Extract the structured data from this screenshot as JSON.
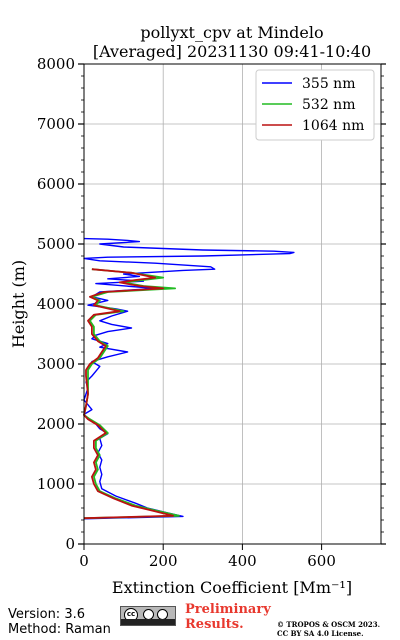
{
  "chart_data": {
    "type": "line",
    "title_line1": "pollyxt_cpv at Mindelo",
    "title_line2": "[Averaged] 20231130 09:41-10:40",
    "xlabel": "Extinction Coefficient [Mm⁻¹]",
    "ylabel": "Height (m)",
    "xlim": [
      0,
      750
    ],
    "ylim": [
      0,
      8000
    ],
    "xticks": [
      0,
      200,
      400,
      600
    ],
    "yticks": [
      0,
      1000,
      2000,
      3000,
      4000,
      5000,
      6000,
      7000,
      8000
    ],
    "grid": true,
    "legend_position": "top-right",
    "series": [
      {
        "name": "355 nm",
        "color": "#0000ff",
        "points": [
          [
            0,
            5090
          ],
          [
            60,
            5080
          ],
          [
            110,
            5060
          ],
          [
            140,
            5040
          ],
          [
            40,
            5000
          ],
          [
            100,
            4950
          ],
          [
            300,
            4900
          ],
          [
            480,
            4880
          ],
          [
            530,
            4860
          ],
          [
            520,
            4840
          ],
          [
            300,
            4800
          ],
          [
            60,
            4780
          ],
          [
            0,
            4760
          ],
          [
            40,
            4720
          ],
          [
            180,
            4680
          ],
          [
            320,
            4620
          ],
          [
            330,
            4580
          ],
          [
            250,
            4560
          ],
          [
            100,
            4500
          ],
          [
            140,
            4460
          ],
          [
            60,
            4420
          ],
          [
            150,
            4380
          ],
          [
            30,
            4340
          ],
          [
            180,
            4260
          ],
          [
            40,
            4200
          ],
          [
            20,
            4120
          ],
          [
            60,
            4060
          ],
          [
            10,
            3980
          ],
          [
            80,
            3920
          ],
          [
            110,
            3880
          ],
          [
            70,
            3800
          ],
          [
            40,
            3720
          ],
          [
            70,
            3660
          ],
          [
            120,
            3600
          ],
          [
            60,
            3540
          ],
          [
            30,
            3480
          ],
          [
            20,
            3420
          ],
          [
            60,
            3340
          ],
          [
            40,
            3280
          ],
          [
            110,
            3200
          ],
          [
            60,
            3120
          ],
          [
            20,
            3040
          ],
          [
            40,
            2960
          ],
          [
            30,
            2880
          ],
          [
            20,
            2800
          ],
          [
            5,
            2700
          ],
          [
            10,
            2600
          ],
          [
            5,
            2500
          ],
          [
            0,
            2400
          ],
          [
            10,
            2320
          ],
          [
            20,
            2240
          ],
          [
            0,
            2160
          ],
          [
            10,
            2080
          ],
          [
            30,
            2000
          ],
          [
            40,
            1920
          ],
          [
            60,
            1840
          ],
          [
            40,
            1760
          ],
          [
            45,
            1640
          ],
          [
            35,
            1520
          ],
          [
            45,
            1400
          ],
          [
            40,
            1280
          ],
          [
            45,
            1160
          ],
          [
            40,
            1040
          ],
          [
            45,
            920
          ],
          [
            80,
            800
          ],
          [
            130,
            680
          ],
          [
            160,
            600
          ],
          [
            210,
            520
          ],
          [
            250,
            460
          ],
          [
            0,
            420
          ]
        ]
      },
      {
        "name": "532 nm",
        "color": "#22bb22",
        "points": [
          [
            20,
            4580
          ],
          [
            120,
            4520
          ],
          [
            200,
            4440
          ],
          [
            150,
            4400
          ],
          [
            100,
            4360
          ],
          [
            150,
            4300
          ],
          [
            230,
            4260
          ],
          [
            60,
            4200
          ],
          [
            20,
            4120
          ],
          [
            40,
            4060
          ],
          [
            30,
            3980
          ],
          [
            100,
            3880
          ],
          [
            30,
            3820
          ],
          [
            15,
            3720
          ],
          [
            25,
            3620
          ],
          [
            25,
            3500
          ],
          [
            40,
            3380
          ],
          [
            60,
            3300
          ],
          [
            50,
            3200
          ],
          [
            40,
            3100
          ],
          [
            20,
            3000
          ],
          [
            10,
            2900
          ],
          [
            10,
            2800
          ],
          [
            10,
            2500
          ],
          [
            5,
            2300
          ],
          [
            0,
            2150
          ],
          [
            15,
            2080
          ],
          [
            40,
            1980
          ],
          [
            60,
            1850
          ],
          [
            30,
            1720
          ],
          [
            30,
            1600
          ],
          [
            40,
            1480
          ],
          [
            30,
            1360
          ],
          [
            35,
            1240
          ],
          [
            25,
            1120
          ],
          [
            30,
            1000
          ],
          [
            40,
            880
          ],
          [
            80,
            760
          ],
          [
            130,
            640
          ],
          [
            180,
            560
          ],
          [
            240,
            470
          ],
          [
            0,
            430
          ]
        ]
      },
      {
        "name": "1064 nm",
        "color": "#bb1111",
        "points": [
          [
            20,
            4580
          ],
          [
            120,
            4520
          ],
          [
            180,
            4440
          ],
          [
            130,
            4400
          ],
          [
            90,
            4360
          ],
          [
            140,
            4300
          ],
          [
            200,
            4260
          ],
          [
            50,
            4200
          ],
          [
            15,
            4120
          ],
          [
            35,
            4060
          ],
          [
            25,
            3980
          ],
          [
            90,
            3880
          ],
          [
            25,
            3820
          ],
          [
            10,
            3720
          ],
          [
            20,
            3620
          ],
          [
            20,
            3500
          ],
          [
            35,
            3380
          ],
          [
            55,
            3300
          ],
          [
            45,
            3200
          ],
          [
            35,
            3100
          ],
          [
            15,
            3000
          ],
          [
            5,
            2900
          ],
          [
            5,
            2800
          ],
          [
            10,
            2500
          ],
          [
            5,
            2300
          ],
          [
            0,
            2150
          ],
          [
            10,
            2080
          ],
          [
            35,
            1980
          ],
          [
            55,
            1850
          ],
          [
            25,
            1720
          ],
          [
            25,
            1600
          ],
          [
            35,
            1480
          ],
          [
            25,
            1360
          ],
          [
            30,
            1240
          ],
          [
            20,
            1120
          ],
          [
            25,
            1000
          ],
          [
            35,
            880
          ],
          [
            75,
            760
          ],
          [
            120,
            640
          ],
          [
            170,
            560
          ],
          [
            225,
            470
          ],
          [
            0,
            430
          ]
        ]
      }
    ]
  },
  "footer": {
    "version": "Version: 3.6",
    "method": "Method: Raman",
    "cc_text": "cc",
    "prelim_line1": "Preliminary",
    "prelim_line2": "Results.",
    "license_line1": "© TROPOS & OSCM 2023.",
    "license_line2": "CC BY SA 4.0 License."
  }
}
